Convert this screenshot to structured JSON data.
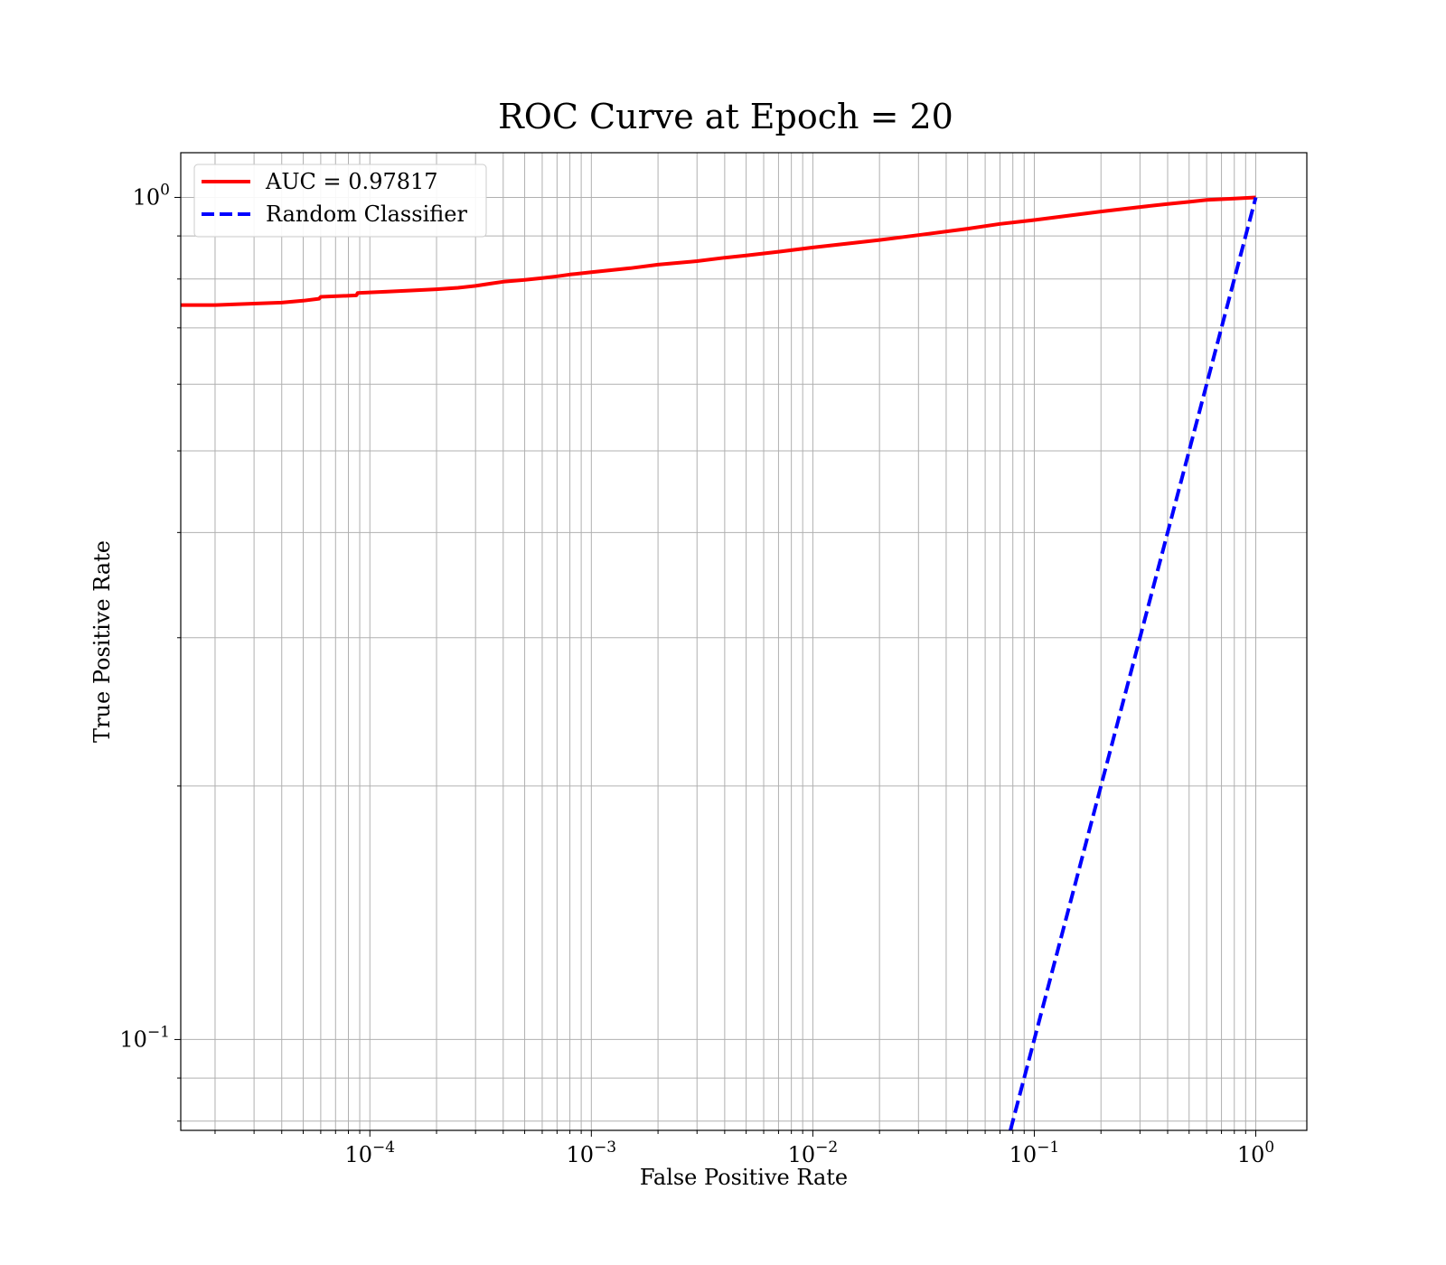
{
  "chart_data": {
    "type": "line",
    "title": "ROC Curve at Epoch = 20",
    "xlabel": "False Positive Rate",
    "ylabel": "True Positive Rate",
    "xscale": "log",
    "yscale": "log",
    "xlim": [
      1.4e-05,
      1.7
    ],
    "ylim": [
      0.078,
      1.13
    ],
    "grid": true,
    "grid_minor": true,
    "legend_position": "top-left",
    "xticks": [
      {
        "value": 0.0001,
        "base": "10",
        "exp": "−4"
      },
      {
        "value": 0.001,
        "base": "10",
        "exp": "−3"
      },
      {
        "value": 0.01,
        "base": "10",
        "exp": "−2"
      },
      {
        "value": 0.1,
        "base": "10",
        "exp": "−1"
      },
      {
        "value": 1,
        "base": "10",
        "exp": "0"
      }
    ],
    "yticks": [
      {
        "value": 0.1,
        "base": "10",
        "exp": "−1"
      },
      {
        "value": 1,
        "base": "10",
        "exp": "0"
      }
    ],
    "series": [
      {
        "name": "AUC = 0.97817",
        "color": "#ff0000",
        "style": "solid",
        "x": [
          1.4e-05,
          2e-05,
          3e-05,
          4e-05,
          5e-05,
          5.9e-05,
          6e-05,
          8.7e-05,
          8.8e-05,
          0.00012,
          0.00015,
          0.0002,
          0.00025,
          0.0003,
          0.00035,
          0.0004,
          0.0005,
          0.0006,
          0.0007,
          0.0008,
          0.001,
          0.0015,
          0.002,
          0.003,
          0.004,
          0.005,
          0.007,
          0.01,
          0.02,
          0.03,
          0.05,
          0.07,
          0.1,
          0.15,
          0.2,
          0.3,
          0.4,
          0.5,
          0.6,
          0.8,
          1.0
        ],
        "y": [
          0.745,
          0.745,
          0.748,
          0.75,
          0.754,
          0.758,
          0.762,
          0.765,
          0.77,
          0.773,
          0.775,
          0.778,
          0.781,
          0.785,
          0.79,
          0.794,
          0.798,
          0.802,
          0.806,
          0.81,
          0.815,
          0.824,
          0.832,
          0.84,
          0.848,
          0.853,
          0.862,
          0.872,
          0.89,
          0.902,
          0.918,
          0.93,
          0.94,
          0.953,
          0.962,
          0.974,
          0.982,
          0.988,
          0.993,
          0.997,
          1.0
        ]
      },
      {
        "name": "Random Classifier",
        "color": "#0000ff",
        "style": "dashed",
        "x": [
          0.078,
          1.0
        ],
        "y": [
          0.078,
          1.0
        ]
      }
    ]
  }
}
